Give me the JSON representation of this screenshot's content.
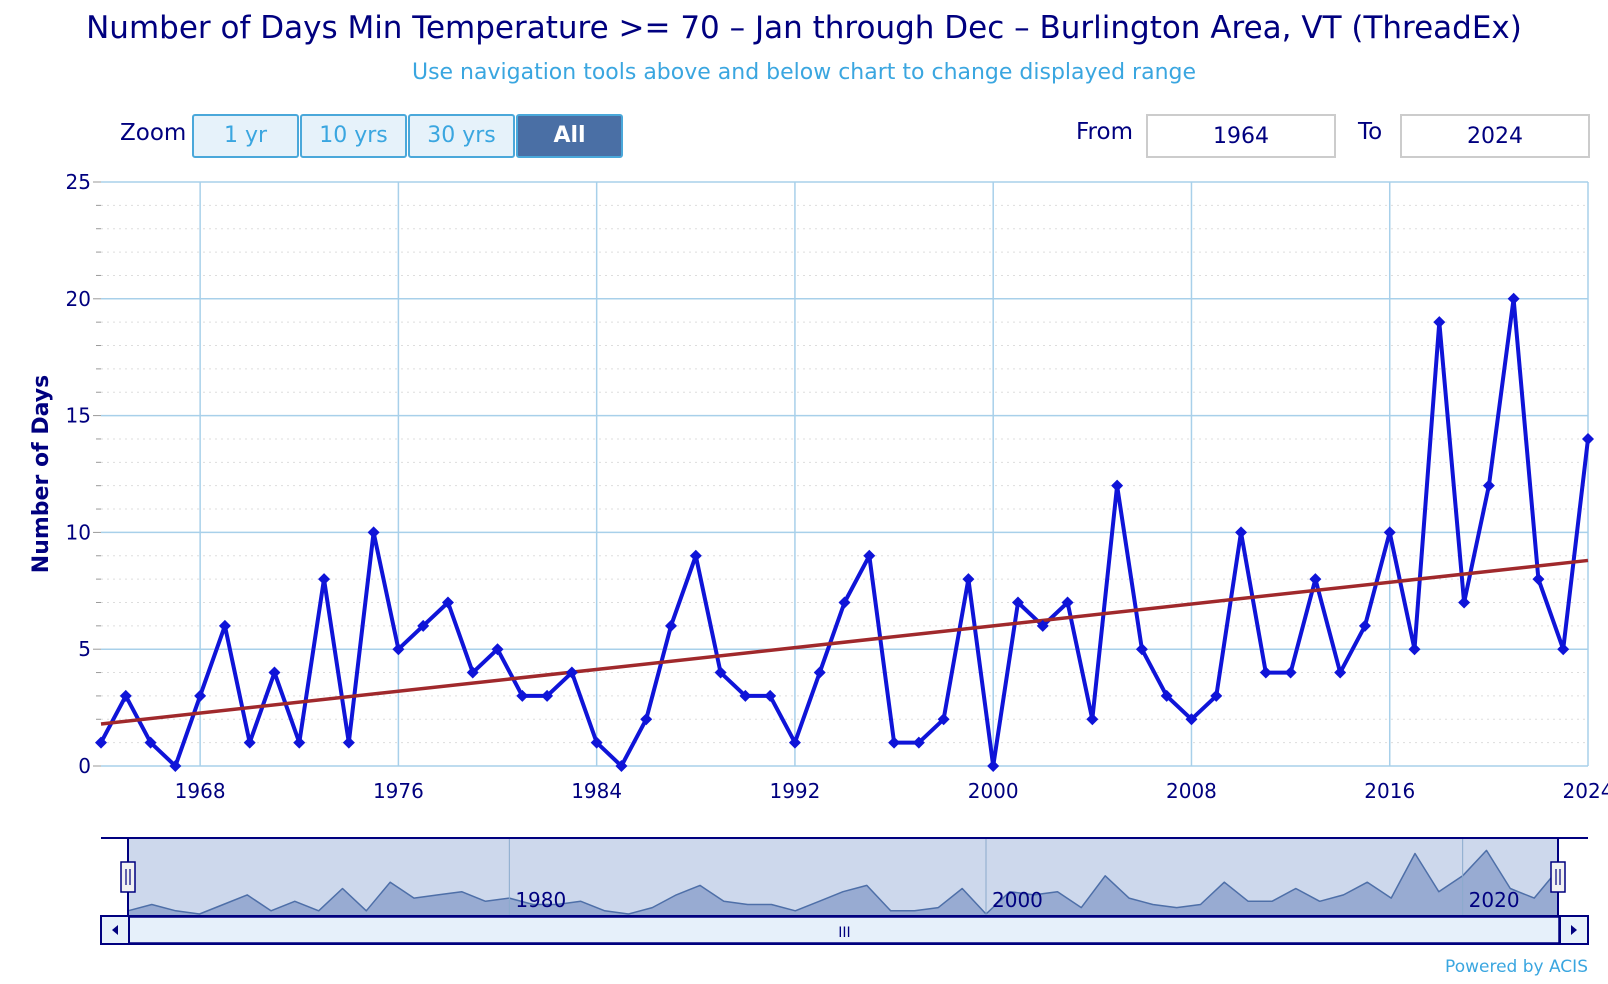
{
  "title": "Number of Days Min Temperature >= 70 – Jan through Dec – Burlington Area, VT (ThreadEx)",
  "subtitle": "Use navigation tools above and below chart to change displayed range",
  "zoom": {
    "label": "Zoom",
    "buttons": [
      {
        "label": "1 yr",
        "active": false
      },
      {
        "label": "10 yrs",
        "active": false
      },
      {
        "label": "30 yrs",
        "active": false
      },
      {
        "label": "All",
        "active": true
      }
    ]
  },
  "range": {
    "from_label": "From",
    "from_value": "1964",
    "to_label": "To",
    "to_value": "2024"
  },
  "credit": "Powered by ACIS",
  "navigator": {
    "labels": [
      "1980",
      "2000",
      "2020"
    ],
    "scroll_glyph": "III"
  },
  "colors": {
    "series": "#0f14d8",
    "trend": "#a0292c",
    "grid": "#a8d0ea",
    "axis_text": "#00007f"
  },
  "chart_data": {
    "type": "line",
    "title": "Number of Days Min Temperature >= 70 – Jan through Dec – Burlington Area, VT (ThreadEx)",
    "xlabel": "",
    "ylabel": "Number of Days",
    "xlim": [
      1964,
      2024
    ],
    "ylim": [
      0,
      25
    ],
    "x_ticks": [
      1968,
      1976,
      1984,
      1992,
      2000,
      2008,
      2016,
      2024
    ],
    "y_ticks": [
      0,
      5,
      10,
      15,
      20,
      25
    ],
    "grid": true,
    "series": [
      {
        "x": [
          1964,
          1965,
          1966,
          1967,
          1968,
          1969,
          1970,
          1971,
          1972,
          1973,
          1974,
          1975,
          1976,
          1977,
          1978,
          1979,
          1980,
          1981,
          1982,
          1983,
          1984,
          1985,
          1986,
          1987,
          1988,
          1989,
          1990,
          1991,
          1992,
          1993,
          1994,
          1995,
          1996,
          1997,
          1998,
          1999,
          2000,
          2001,
          2002,
          2003,
          2004,
          2005,
          2006,
          2007,
          2008,
          2009,
          2010,
          2011,
          2012,
          2013,
          2014,
          2015,
          2016,
          2017,
          2018,
          2019,
          2020,
          2021,
          2022,
          2023,
          2024
        ],
        "values": [
          1,
          3,
          1,
          0,
          3,
          6,
          1,
          4,
          1,
          8,
          1,
          10,
          5,
          6,
          7,
          4,
          5,
          3,
          3,
          4,
          1,
          0,
          2,
          6,
          9,
          4,
          3,
          3,
          1,
          4,
          7,
          9,
          1,
          1,
          2,
          8,
          0,
          7,
          6,
          7,
          2,
          12,
          5,
          3,
          2,
          3,
          10,
          4,
          4,
          8,
          4,
          6,
          10,
          5,
          19,
          7,
          12,
          20,
          8,
          5,
          14
        ]
      },
      {
        "type": "trend",
        "x": [
          1964,
          2024
        ],
        "values": [
          1.8,
          8.8
        ]
      }
    ]
  }
}
